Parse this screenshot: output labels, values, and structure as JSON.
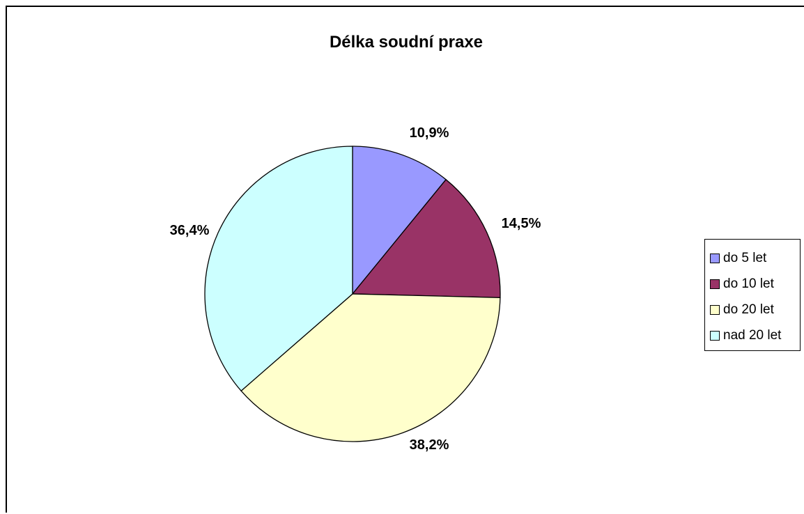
{
  "chart_data": {
    "type": "pie",
    "title": "Délka soudní praxe",
    "legend_position": "right",
    "slices": [
      {
        "name": "do 5 let",
        "value": 10.9,
        "label": "10,9%",
        "color": "#9999ff"
      },
      {
        "name": "do 10 let",
        "value": 14.5,
        "label": "14,5%",
        "color": "#993366"
      },
      {
        "name": "do 20 let",
        "value": 38.2,
        "label": "38,2%",
        "color": "#ffffcc"
      },
      {
        "name": "nad 20 let",
        "value": 36.4,
        "label": "36,4%",
        "color": "#ccffff"
      }
    ]
  }
}
